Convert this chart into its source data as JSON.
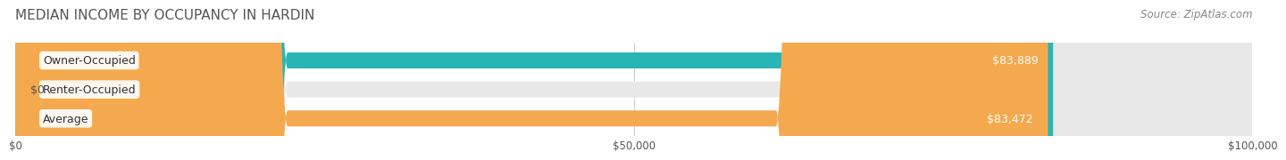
{
  "title": "MEDIAN INCOME BY OCCUPANCY IN HARDIN",
  "source": "Source: ZipAtlas.com",
  "categories": [
    "Owner-Occupied",
    "Renter-Occupied",
    "Average"
  ],
  "values": [
    83889,
    0,
    83472
  ],
  "labels": [
    "$83,889",
    "$0",
    "$83,472"
  ],
  "bar_colors": [
    "#2ab5b5",
    "#c4a8d0",
    "#f5a94e"
  ],
  "bar_bg_color": "#e8e8e8",
  "xlim": [
    0,
    100000
  ],
  "xticks": [
    0,
    50000,
    100000
  ],
  "xtick_labels": [
    "$0",
    "$50,000",
    "$100,000"
  ],
  "title_fontsize": 11,
  "source_fontsize": 8.5,
  "label_fontsize": 9,
  "bar_height": 0.55,
  "bar_label_color_inside": "#ffffff",
  "bar_label_color_outside": "#555555",
  "category_label_fontsize": 9,
  "background_color": "#ffffff"
}
